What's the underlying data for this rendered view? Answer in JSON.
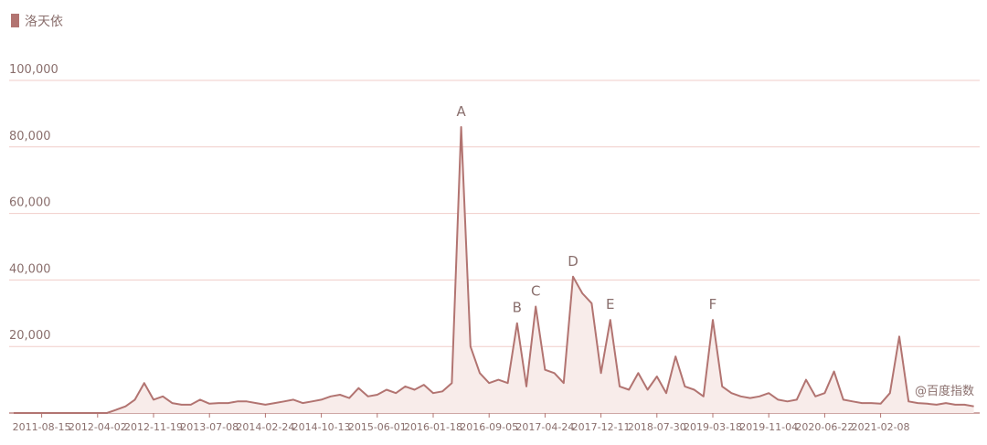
{
  "chart_data": {
    "type": "line",
    "legend": "洛天依",
    "color": "#b27471",
    "fill": "#f8ecea",
    "ylim": [
      0,
      100000
    ],
    "yticks": [
      {
        "value": 20000,
        "label": "20,000"
      },
      {
        "value": 40000,
        "label": "40,000"
      },
      {
        "value": 60000,
        "label": "60,000"
      },
      {
        "value": 80000,
        "label": "80,000"
      },
      {
        "value": 100000,
        "label": "100,000"
      }
    ],
    "grid": true,
    "categories": [
      null,
      null,
      null,
      "2011-08-15",
      null,
      null,
      null,
      null,
      null,
      "2012-04-02",
      null,
      null,
      null,
      null,
      null,
      "2012-11-19",
      null,
      null,
      null,
      null,
      null,
      "2013-07-08",
      null,
      null,
      null,
      null,
      null,
      "2014-02-24",
      null,
      null,
      null,
      null,
      null,
      "2014-10-13",
      null,
      null,
      null,
      null,
      null,
      "2015-06-01",
      null,
      null,
      null,
      null,
      null,
      "2016-01-18",
      null,
      null,
      null,
      null,
      null,
      "2016-09-05",
      null,
      null,
      null,
      null,
      null,
      "2017-04-24",
      null,
      null,
      null,
      null,
      null,
      "2017-12-11",
      null,
      null,
      null,
      null,
      null,
      "2018-07-30",
      null,
      null,
      null,
      null,
      null,
      "2019-03-18",
      null,
      null,
      null,
      null,
      null,
      "2019-11-04",
      null,
      null,
      null,
      null,
      null,
      "2020-06-22",
      null,
      null,
      null,
      null,
      null,
      "2021-02-08",
      null,
      null,
      null,
      null,
      null,
      null,
      null,
      null,
      null,
      null
    ],
    "values": [
      0,
      0,
      0,
      0,
      0,
      0,
      0,
      0,
      0,
      0,
      0,
      1000,
      2000,
      4000,
      9000,
      4000,
      5000,
      3000,
      2500,
      2500,
      4000,
      2800,
      3000,
      3000,
      3500,
      3500,
      3000,
      2500,
      3000,
      3500,
      4000,
      3000,
      3500,
      4000,
      5000,
      5500,
      4500,
      7500,
      5000,
      5500,
      7000,
      6000,
      8000,
      7000,
      8500,
      6000,
      6500,
      9000,
      86000,
      20000,
      12000,
      9000,
      10000,
      9000,
      27000,
      8000,
      32000,
      13000,
      12000,
      9000,
      41000,
      36000,
      33000,
      12000,
      28000,
      8000,
      7000,
      12000,
      7000,
      11000,
      6000,
      17000,
      8000,
      7000,
      5000,
      28000,
      8000,
      6000,
      5000,
      4500,
      5000,
      6000,
      4000,
      3500,
      4000,
      10000,
      5000,
      6000,
      12500,
      4000,
      3500,
      3000,
      3000,
      2800,
      6000,
      23000,
      3500,
      3000,
      2800,
      2500,
      3000,
      2500,
      2500,
      2000
    ],
    "annotations": [
      {
        "text": "A",
        "point": 48
      },
      {
        "text": "B",
        "point": 54
      },
      {
        "text": "C",
        "point": 56
      },
      {
        "text": "D",
        "point": 60
      },
      {
        "text": "E",
        "point": 64
      },
      {
        "text": "F",
        "point": 75
      }
    ],
    "watermark": "@百度指数"
  }
}
